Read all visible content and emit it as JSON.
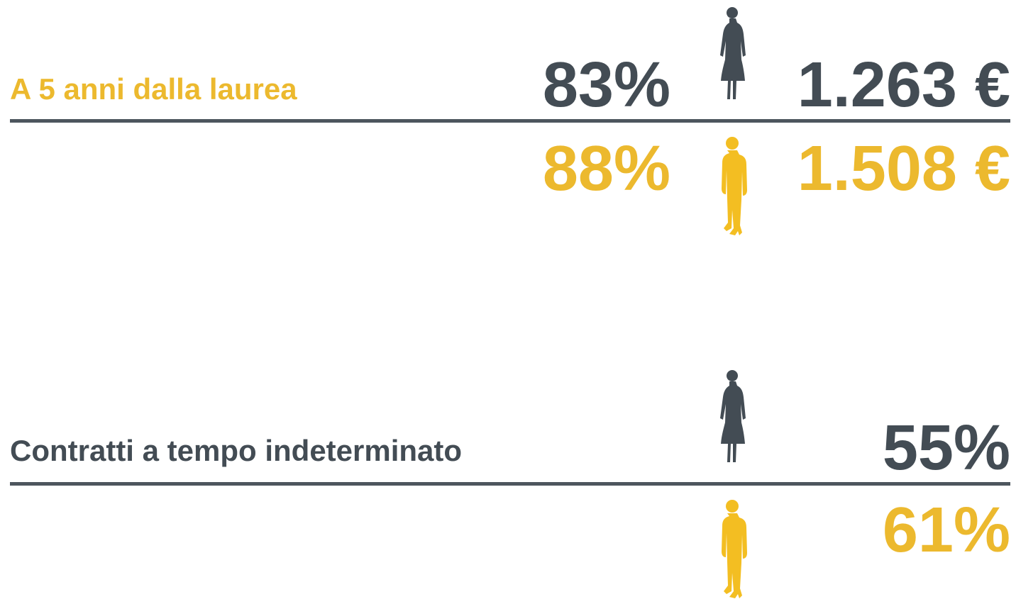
{
  "sections": [
    {
      "title": "A 5 anni dalla laurea",
      "women": [
        "83%",
        "1.263 €"
      ],
      "men": [
        "88%",
        "1.508 €"
      ]
    },
    {
      "title": "Contratti a tempo indeterminato",
      "women": [
        "55%"
      ],
      "men": [
        "61%"
      ]
    }
  ]
}
